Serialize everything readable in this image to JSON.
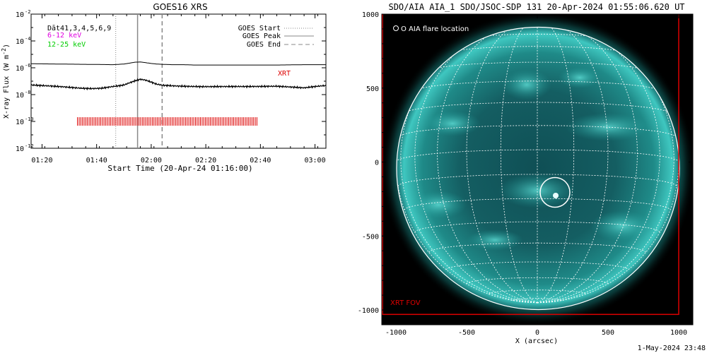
{
  "left_panel": {
    "title": "GOES16 XRS",
    "ylabel": "X-ray Flux (W m",
    "ylabel_sup": "-2",
    "ylabel_close": ")",
    "xlabel": "Start Time (20-Apr-24 01:16:00)",
    "legend_left": [
      {
        "text": "Dāt41,3,4,5,6,9",
        "color": "#000000"
      },
      {
        "text": "6-12 keV",
        "color": "#e000e0"
      },
      {
        "text": "12-25 keV",
        "color": "#00cc00"
      }
    ],
    "legend_right": [
      {
        "text": "GOES Start",
        "style": "dotted"
      },
      {
        "text": "GOES Peak",
        "style": "solid"
      },
      {
        "text": "GOES End",
        "style": "dashed"
      }
    ],
    "xrt_label": "XRT",
    "xrt_color": "#dd0000"
  },
  "right_panel": {
    "title": "SDO/AIA AIA_1 SDO/JSOC-SDP 131 20-Apr-2024 01:55:06.620 UT",
    "legend": "O AIA flare location",
    "fov_label": "XRT FOV",
    "xlabel": "X (arcsec)",
    "fov_color": "#dd0000",
    "sun_color": "#1fb5b0"
  },
  "footer": {
    "timestamp": "1-May-2024 23:48"
  },
  "chart_data": [
    {
      "type": "line",
      "title": "GOES16 XRS",
      "xlabel": "Start Time (20-Apr-24 01:16:00)",
      "ylabel": "X-ray Flux (W m-2)",
      "yscale": "log",
      "xlim_minutes": [
        0,
        108
      ],
      "ylim": [
        1e-12,
        0.01
      ],
      "x_tick_minutes": [
        4,
        24,
        44,
        64,
        84,
        104
      ],
      "x_tick_labels": [
        "01:20",
        "01:40",
        "02:00",
        "02:20",
        "02:40",
        "03:00"
      ],
      "y_tick_exponents": [
        -12,
        -10,
        -8,
        -6,
        -4,
        -2
      ],
      "y_tick_labels": [
        "10",
        "10",
        "10",
        "10",
        "10",
        "10"
      ],
      "series": [
        {
          "name": "long",
          "x_minutes": [
            0,
            10,
            20,
            26,
            30,
            34,
            36,
            38,
            40,
            42,
            44,
            46,
            48,
            52,
            56,
            60,
            64,
            70,
            80,
            90,
            100,
            108
          ],
          "values": [
            2e-06,
            1.9e-06,
            1.8e-06,
            1.75e-06,
            1.7e-06,
            1.9e-06,
            2.2e-06,
            2.6e-06,
            2.7e-06,
            2.4e-06,
            2.1e-06,
            1.9e-06,
            1.8e-06,
            1.7e-06,
            1.7e-06,
            1.6e-06,
            1.6e-06,
            1.6e-06,
            1.6e-06,
            1.6e-06,
            1.7e-06,
            1.7e-06
          ]
        },
        {
          "name": "short",
          "x_minutes": [
            0,
            6,
            12,
            18,
            22,
            26,
            28,
            30,
            32,
            34,
            36,
            38,
            40,
            42,
            44,
            46,
            48,
            52,
            56,
            60,
            64,
            70,
            80,
            90,
            96,
            100,
            104,
            108
          ],
          "values": [
            5.2e-08,
            4.5e-08,
            3.8e-08,
            3e-08,
            2.8e-08,
            3e-08,
            3.5e-08,
            4e-08,
            4.5e-08,
            5.2e-08,
            7.5e-08,
            1.05e-07,
            1.4e-07,
            1.2e-07,
            8.5e-08,
            6e-08,
            5e-08,
            4.5e-08,
            4.2e-08,
            4e-08,
            3.9e-08,
            4e-08,
            4e-08,
            4.2e-08,
            3.6e-08,
            3.2e-08,
            4e-08,
            4.8e-08
          ]
        }
      ],
      "markers": {
        "goes_start_minutes": 31,
        "goes_peak_minutes": 39,
        "goes_end_minutes": 48
      },
      "xrt_obs": {
        "y_value": 1e-10,
        "start_minutes": 17,
        "end_minutes": 83
      }
    },
    {
      "type": "image",
      "title": "SDO/AIA AIA_1 SDO/JSOC-SDP 131 20-Apr-2024 01:55:06.620 UT",
      "xlabel": "X (arcsec)",
      "xlim": [
        -1100,
        1100
      ],
      "ylim": [
        -1100,
        1000
      ],
      "x_ticks": [
        -1000,
        -500,
        0,
        500,
        1000
      ],
      "x_tick_labels": [
        "-1000",
        "-500",
        "0",
        "500",
        "1000"
      ],
      "y_ticks": [
        1000,
        500,
        0,
        -500,
        -1000
      ],
      "y_tick_labels": [
        "1000",
        "500",
        "0",
        "-500",
        "-1000"
      ],
      "solar_radius_arcsec": 1000,
      "flare_location": {
        "x": 125,
        "y": -205,
        "radius": 105
      },
      "xrt_fov": {
        "xmin": -1100,
        "xmax": 1000,
        "ymin": -1030,
        "ymax": 1090
      }
    }
  ]
}
